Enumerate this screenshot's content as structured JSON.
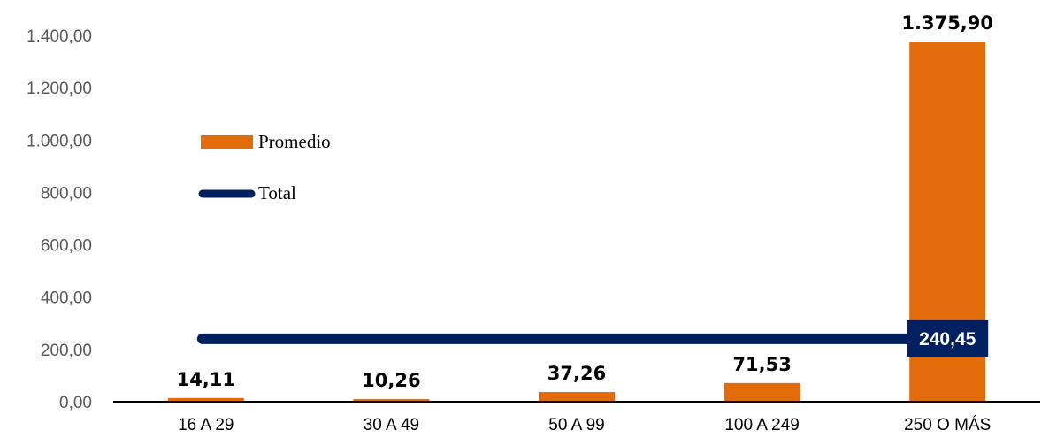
{
  "chart_data": {
    "type": "bar",
    "categories": [
      "16 A 29",
      "30 A 49",
      "50 A 99",
      "100 A 249",
      "250 O MÁS"
    ],
    "series": [
      {
        "name": "Promedio",
        "type": "bar",
        "values": [
          14.11,
          10.26,
          37.26,
          71.53,
          1375.9
        ],
        "labels": [
          "14,11",
          "10,26",
          "37,26",
          "71,53",
          "1.375,90"
        ]
      },
      {
        "name": "Total",
        "type": "line",
        "values": [
          240.45,
          240.45,
          240.45,
          240.45,
          240.45
        ],
        "label": "240,45"
      }
    ],
    "y_ticks": [
      "0,00",
      "200,00",
      "400,00",
      "600,00",
      "800,00",
      "1.000,00",
      "1.200,00",
      "1.400,00"
    ],
    "ylim": [
      0,
      1400
    ],
    "grid": false,
    "legend_position": "upper-left",
    "colors": {
      "bar": "#E36C0A",
      "line": "#002060",
      "axis": "#000000",
      "tick_text": "#595959"
    }
  }
}
